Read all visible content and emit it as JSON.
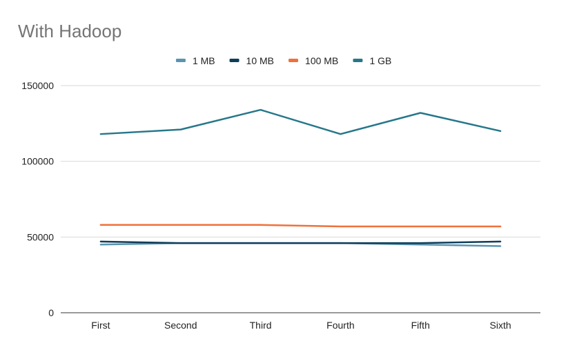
{
  "chart_data": {
    "type": "line",
    "title": "With Hadoop",
    "xlabel": "",
    "ylabel": "",
    "categories": [
      "First",
      "Second",
      "Third",
      "Fourth",
      "Fifth",
      "Sixth"
    ],
    "ylim": [
      0,
      150000
    ],
    "yticks": [
      "0",
      "50000",
      "100000",
      "150000"
    ],
    "grid": true,
    "legend_position": "top-center",
    "series": [
      {
        "name": "1 MB",
        "color": "#5a94b0",
        "values": [
          45000,
          46000,
          46000,
          46000,
          45000,
          44000
        ]
      },
      {
        "name": "10 MB",
        "color": "#0e3d5a",
        "values": [
          47000,
          46000,
          46000,
          46000,
          46000,
          47000
        ]
      },
      {
        "name": "100 MB",
        "color": "#f0703a",
        "values": [
          58000,
          58000,
          58000,
          57000,
          57000,
          57000
        ]
      },
      {
        "name": "1 GB",
        "color": "#26778a",
        "values": [
          118000,
          121000,
          134000,
          118000,
          132000,
          120000
        ]
      }
    ]
  }
}
